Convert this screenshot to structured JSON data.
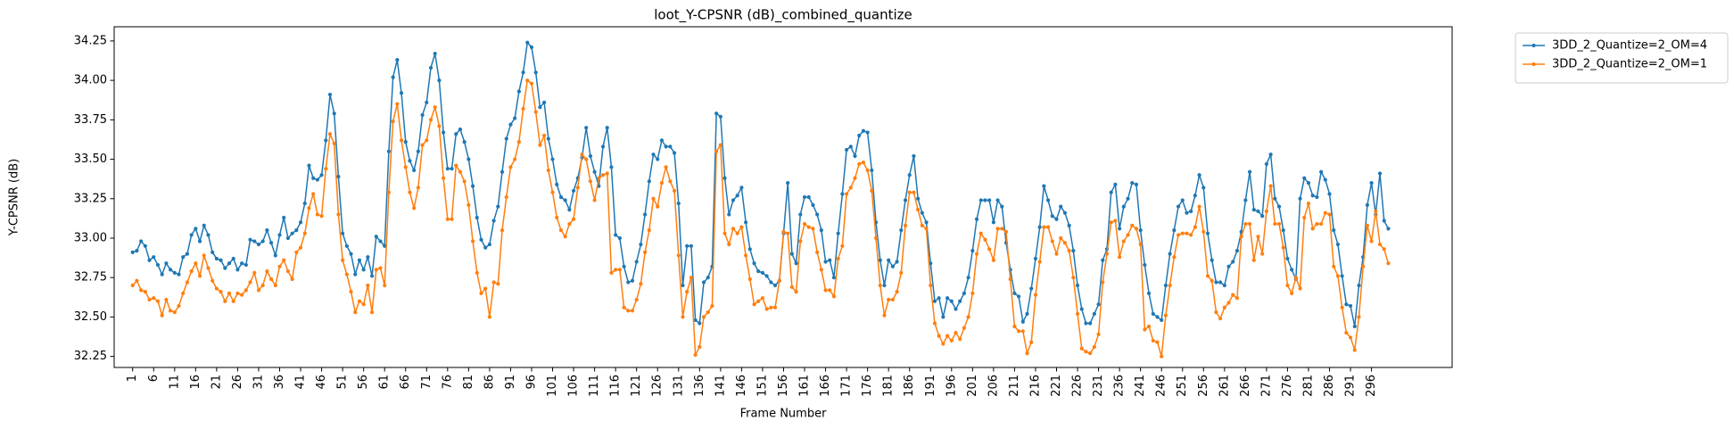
{
  "chart_data": {
    "type": "line",
    "title": "loot_Y-CPSNR (dB)_combined_quantize",
    "xlabel": "Frame Number",
    "ylabel": "Y-CPSNR (dB)",
    "x": [
      1,
      2,
      3,
      4,
      5,
      6,
      7,
      8,
      9,
      10,
      11,
      12,
      13,
      14,
      15,
      16,
      17,
      18,
      19,
      20,
      21,
      22,
      23,
      24,
      25,
      26,
      27,
      28,
      29,
      30,
      31,
      32,
      33,
      34,
      35,
      36,
      37,
      38,
      39,
      40,
      41,
      42,
      43,
      44,
      45,
      46,
      47,
      48,
      49,
      50,
      51,
      52,
      53,
      54,
      55,
      56,
      57,
      58,
      59,
      60,
      61,
      62,
      63,
      64,
      65,
      66,
      67,
      68,
      69,
      70,
      71,
      72,
      73,
      74,
      75,
      76,
      77,
      78,
      79,
      80,
      81,
      82,
      83,
      84,
      85,
      86,
      87,
      88,
      89,
      90,
      91,
      92,
      93,
      94,
      95,
      96,
      97,
      98,
      99,
      100,
      101,
      102,
      103,
      104,
      105,
      106,
      107,
      108,
      109,
      110,
      111,
      112,
      113,
      114,
      115,
      116,
      117,
      118,
      119,
      120,
      121,
      122,
      123,
      124,
      125,
      126,
      127,
      128,
      129,
      130,
      131,
      132,
      133,
      134,
      135,
      136,
      137,
      138,
      139,
      140,
      141,
      142,
      143,
      144,
      145,
      146,
      147,
      148,
      149,
      150,
      151,
      152,
      153,
      154,
      155,
      156,
      157,
      158,
      159,
      160,
      161,
      162,
      163,
      164,
      165,
      166,
      167,
      168,
      169,
      170,
      171,
      172,
      173,
      174,
      175,
      176,
      177,
      178,
      179,
      180,
      181,
      182,
      183,
      184,
      185,
      186,
      187,
      188,
      189,
      190,
      191,
      192,
      193,
      194,
      195,
      196,
      197,
      198,
      199,
      200,
      201,
      202,
      203,
      204,
      205,
      206,
      207,
      208,
      209,
      210,
      211,
      212,
      213,
      214,
      215,
      216,
      217,
      218,
      219,
      220,
      221,
      222,
      223,
      224,
      225,
      226,
      227,
      228,
      229,
      230,
      231,
      232,
      233,
      234,
      235,
      236,
      237,
      238,
      239,
      240,
      241,
      242,
      243,
      244,
      245,
      246,
      247,
      248,
      249,
      250,
      251,
      252,
      253,
      254,
      255,
      256,
      257,
      258,
      259,
      260,
      261,
      262,
      263,
      264,
      265,
      266,
      267,
      268,
      269,
      270,
      271,
      272,
      273,
      274,
      275,
      276,
      277,
      278,
      279,
      280,
      281,
      282,
      283,
      284,
      285,
      286,
      287,
      288,
      289,
      290,
      291,
      292,
      293,
      294,
      295,
      296,
      297,
      298,
      299,
      300
    ],
    "series": [
      {
        "name": "3DD_2_Quantize=2_OM=4",
        "color": "#1f77b4",
        "values": [
          32.91,
          32.92,
          32.98,
          32.95,
          32.86,
          32.88,
          32.83,
          32.77,
          32.84,
          32.8,
          32.78,
          32.77,
          32.88,
          32.9,
          33.02,
          33.06,
          32.98,
          33.08,
          33.02,
          32.91,
          32.87,
          32.86,
          32.81,
          32.84,
          32.87,
          32.8,
          32.84,
          32.83,
          32.99,
          32.98,
          32.96,
          32.98,
          33.05,
          32.97,
          32.89,
          33.02,
          33.13,
          33.0,
          33.03,
          33.05,
          33.1,
          33.22,
          33.46,
          33.38,
          33.37,
          33.4,
          33.62,
          33.91,
          33.79,
          33.39,
          33.03,
          32.95,
          32.9,
          32.77,
          32.86,
          32.8,
          32.88,
          32.76,
          33.01,
          32.98,
          32.95,
          33.55,
          34.02,
          34.13,
          33.92,
          33.61,
          33.49,
          33.43,
          33.55,
          33.78,
          33.86,
          34.08,
          34.17,
          34.0,
          33.67,
          33.44,
          33.44,
          33.66,
          33.69,
          33.61,
          33.5,
          33.33,
          33.13,
          32.99,
          32.94,
          32.96,
          33.11,
          33.2,
          33.42,
          33.63,
          33.72,
          33.76,
          33.93,
          34.05,
          34.24,
          34.21,
          34.05,
          33.83,
          33.86,
          33.63,
          33.5,
          33.34,
          33.26,
          33.24,
          33.18,
          33.3,
          33.38,
          33.51,
          33.7,
          33.52,
          33.42,
          33.33,
          33.58,
          33.7,
          33.45,
          33.02,
          33.0,
          32.82,
          32.72,
          32.73,
          32.85,
          32.96,
          33.15,
          33.36,
          33.53,
          33.5,
          33.62,
          33.58,
          33.58,
          33.54,
          33.22,
          32.7,
          32.95,
          32.95,
          32.48,
          32.46,
          32.72,
          32.75,
          32.82,
          33.79,
          33.77,
          33.38,
          33.15,
          33.24,
          33.27,
          33.32,
          33.1,
          32.93,
          32.84,
          32.79,
          32.78,
          32.76,
          32.72,
          32.7,
          32.73,
          33.03,
          33.35,
          32.9,
          32.84,
          33.15,
          33.26,
          33.26,
          33.21,
          33.15,
          33.05,
          32.85,
          32.86,
          32.75,
          33.03,
          33.28,
          33.56,
          33.58,
          33.52,
          33.65,
          33.68,
          33.67,
          33.43,
          33.1,
          32.86,
          32.7,
          32.86,
          32.82,
          32.85,
          33.05,
          33.24,
          33.4,
          33.52,
          33.25,
          33.16,
          33.1,
          32.84,
          32.6,
          32.62,
          32.5,
          32.62,
          32.6,
          32.55,
          32.6,
          32.65,
          32.75,
          32.92,
          33.12,
          33.24,
          33.24,
          33.24,
          33.1,
          33.24,
          33.2,
          32.97,
          32.8,
          32.65,
          32.63,
          32.47,
          32.52,
          32.68,
          32.87,
          33.07,
          33.33,
          33.24,
          33.14,
          33.12,
          33.2,
          33.16,
          33.08,
          32.92,
          32.7,
          32.55,
          32.46,
          32.46,
          32.52,
          32.58,
          32.86,
          32.93,
          33.29,
          33.34,
          33.06,
          33.2,
          33.25,
          33.35,
          33.34,
          33.05,
          32.83,
          32.65,
          32.52,
          32.5,
          32.48,
          32.7,
          32.9,
          33.05,
          33.2,
          33.24,
          33.16,
          33.17,
          33.27,
          33.4,
          33.32,
          33.03,
          32.86,
          32.72,
          32.72,
          32.7,
          32.82,
          32.85,
          32.92,
          33.04,
          33.24,
          33.42,
          33.18,
          33.17,
          33.14,
          33.47,
          33.53,
          33.25,
          33.2,
          33.05,
          32.87,
          32.8,
          32.74,
          33.25,
          33.38,
          33.35,
          33.27,
          33.26,
          33.42,
          33.37,
          33.28,
          33.05,
          32.96,
          32.76,
          32.58,
          32.57,
          32.44,
          32.7,
          32.88,
          33.21,
          33.35,
          33.15,
          33.41,
          33.11,
          33.06
        ]
      },
      {
        "name": "3DD_2_Quantize=2_OM=1",
        "color": "#ff7f0e",
        "values": [
          32.7,
          32.73,
          32.67,
          32.66,
          32.61,
          32.62,
          32.6,
          32.51,
          32.61,
          32.54,
          32.53,
          32.57,
          32.65,
          32.72,
          32.79,
          32.84,
          32.76,
          32.89,
          32.81,
          32.73,
          32.68,
          32.66,
          32.6,
          32.65,
          32.6,
          32.65,
          32.64,
          32.67,
          32.72,
          32.78,
          32.67,
          32.7,
          32.79,
          32.74,
          32.7,
          32.82,
          32.86,
          32.79,
          32.74,
          32.91,
          32.94,
          33.03,
          33.19,
          33.28,
          33.15,
          33.14,
          33.44,
          33.66,
          33.6,
          33.15,
          32.86,
          32.77,
          32.66,
          32.53,
          32.6,
          32.58,
          32.7,
          32.53,
          32.8,
          32.81,
          32.7,
          33.29,
          33.74,
          33.85,
          33.62,
          33.45,
          33.29,
          33.19,
          33.32,
          33.59,
          33.62,
          33.75,
          33.83,
          33.71,
          33.38,
          33.12,
          33.12,
          33.46,
          33.42,
          33.36,
          33.21,
          32.98,
          32.78,
          32.65,
          32.68,
          32.5,
          32.72,
          32.71,
          33.05,
          33.26,
          33.45,
          33.5,
          33.61,
          33.82,
          34.0,
          33.98,
          33.8,
          33.59,
          33.65,
          33.43,
          33.29,
          33.13,
          33.05,
          33.01,
          33.09,
          33.12,
          33.32,
          33.53,
          33.5,
          33.36,
          33.24,
          33.38,
          33.4,
          33.41,
          32.78,
          32.8,
          32.8,
          32.56,
          32.54,
          32.54,
          32.61,
          32.71,
          32.91,
          33.05,
          33.25,
          33.2,
          33.35,
          33.45,
          33.36,
          33.3,
          32.89,
          32.5,
          32.66,
          32.75,
          32.26,
          32.31,
          32.5,
          32.53,
          32.57,
          33.55,
          33.59,
          33.03,
          32.96,
          33.06,
          33.03,
          33.07,
          32.89,
          32.74,
          32.58,
          32.6,
          32.62,
          32.55,
          32.56,
          32.56,
          32.73,
          33.04,
          33.03,
          32.69,
          32.66,
          32.98,
          33.09,
          33.07,
          33.06,
          32.91,
          32.8,
          32.67,
          32.67,
          32.63,
          32.87,
          32.95,
          33.28,
          33.32,
          33.38,
          33.47,
          33.48,
          33.43,
          33.3,
          33.0,
          32.7,
          32.51,
          32.61,
          32.61,
          32.66,
          32.78,
          33.08,
          33.29,
          33.29,
          33.18,
          33.08,
          33.06,
          32.7,
          32.46,
          32.38,
          32.33,
          32.38,
          32.35,
          32.4,
          32.36,
          32.43,
          32.5,
          32.65,
          32.9,
          33.03,
          32.99,
          32.93,
          32.86,
          33.06,
          33.06,
          33.04,
          32.74,
          32.44,
          32.41,
          32.41,
          32.27,
          32.34,
          32.64,
          32.85,
          33.07,
          33.07,
          32.98,
          32.9,
          33.0,
          32.97,
          32.92,
          32.75,
          32.52,
          32.3,
          32.28,
          32.27,
          32.31,
          32.39,
          32.72,
          32.9,
          33.1,
          33.11,
          32.88,
          32.98,
          33.02,
          33.08,
          33.06,
          32.96,
          32.42,
          32.44,
          32.35,
          32.34,
          32.25,
          32.51,
          32.7,
          32.88,
          33.02,
          33.03,
          33.03,
          33.02,
          33.07,
          33.2,
          33.04,
          32.76,
          32.73,
          32.53,
          32.49,
          32.56,
          32.59,
          32.64,
          32.62,
          33.01,
          33.09,
          33.09,
          32.86,
          33.01,
          32.9,
          33.17,
          33.33,
          33.09,
          33.09,
          32.94,
          32.7,
          32.65,
          32.75,
          32.68,
          33.13,
          33.22,
          33.06,
          33.09,
          33.09,
          33.16,
          33.15,
          32.82,
          32.76,
          32.56,
          32.4,
          32.37,
          32.29,
          32.5,
          32.82,
          33.08,
          32.98,
          33.17,
          32.96,
          32.93,
          32.84
        ]
      }
    ],
    "xlim": [
      -3.4,
      315.2
    ],
    "xticks": [
      1,
      6,
      11,
      16,
      21,
      26,
      31,
      36,
      41,
      46,
      51,
      56,
      61,
      66,
      71,
      76,
      81,
      86,
      91,
      96,
      101,
      106,
      111,
      116,
      121,
      126,
      131,
      136,
      141,
      146,
      151,
      156,
      161,
      166,
      171,
      176,
      181,
      186,
      191,
      196,
      201,
      206,
      211,
      216,
      221,
      226,
      231,
      236,
      241,
      246,
      251,
      256,
      261,
      266,
      271,
      276,
      281,
      286,
      291,
      296
    ],
    "ylim": [
      32.18,
      34.34
    ],
    "yticks": [
      {
        "value": 32.25,
        "label": "32.25"
      },
      {
        "value": 32.5,
        "label": "32.50"
      },
      {
        "value": 32.75,
        "label": "32.75"
      },
      {
        "value": 33,
        "label": "33.00"
      },
      {
        "value": 33.25,
        "label": "33.25"
      },
      {
        "value": 33.5,
        "label": "33.50"
      },
      {
        "value": 33.75,
        "label": "33.75"
      },
      {
        "value": 34,
        "label": "34.00"
      },
      {
        "value": 34.25,
        "label": "34.25"
      }
    ],
    "grid": false,
    "legend": "outside upper right"
  }
}
